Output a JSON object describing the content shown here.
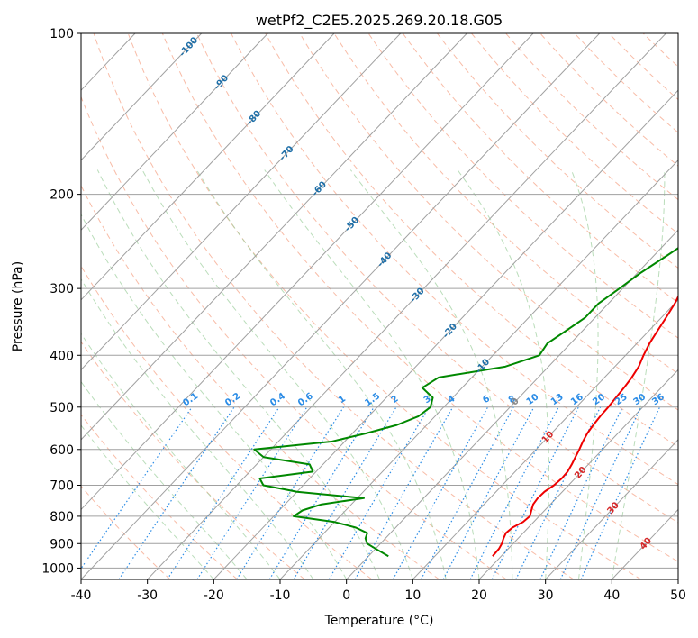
{
  "chart_data": {
    "type": "line",
    "title": "wetPf2_C2E5.2025.269.20.18.G05",
    "xlabel": "Temperature (°C)",
    "ylabel": "Pressure (hPa)",
    "xlim": [
      -40,
      50
    ],
    "ylim": [
      1050,
      100
    ],
    "x_ticks": [
      -40,
      -30,
      -20,
      -10,
      0,
      10,
      20,
      30,
      40,
      50
    ],
    "y_ticks": [
      100,
      200,
      300,
      400,
      500,
      600,
      700,
      800,
      900,
      1000
    ],
    "colors": {
      "temperature": "#ee0000",
      "dewpoint": "#008800",
      "isotherm": "#a0a0a0",
      "dry_adiabat": "#f6a58a",
      "moist_adiabat": "#9ccf9c",
      "mixing_ratio": "#2b8ce6",
      "isotherm_label": "#1f6fa8",
      "dry_label": "#d62728",
      "boundary": "#d8b48c"
    },
    "series": [
      {
        "name": "Temperature",
        "pressure": [
          950,
          920,
          900,
          880,
          860,
          840,
          820,
          800,
          780,
          760,
          740,
          720,
          700,
          680,
          660,
          640,
          620,
          600,
          580,
          560,
          540,
          520,
          500,
          480,
          460,
          440,
          420,
          400,
          380,
          360,
          340,
          320,
          300,
          280,
          260,
          240,
          230,
          220,
          210,
          200,
          190,
          180,
          170,
          160,
          150,
          140,
          130,
          120,
          110,
          100
        ],
        "values": [
          18.7,
          18.6,
          18.3,
          17.8,
          17.4,
          17.6,
          18.4,
          18.6,
          18.0,
          17.4,
          17.2,
          17.3,
          17.8,
          18.0,
          17.9,
          17.5,
          17.0,
          16.5,
          15.9,
          15.4,
          15.1,
          14.9,
          14.8,
          14.6,
          14.4,
          14.1,
          13.6,
          12.7,
          11.9,
          11.3,
          10.7,
          10.0,
          9.0,
          7.6,
          5.8,
          4.0,
          3.0,
          2.2,
          1.5,
          -0.2,
          0.2,
          2.0,
          3.0,
          3.2,
          2.2,
          1.2,
          2.0,
          4.5,
          7.8,
          10.8
        ]
      },
      {
        "name": "Dewpoint",
        "pressure": [
          950,
          920,
          900,
          880,
          860,
          840,
          820,
          800,
          780,
          760,
          740,
          720,
          700,
          680,
          660,
          640,
          620,
          600,
          580,
          560,
          540,
          520,
          500,
          480,
          460,
          440,
          420,
          400,
          380,
          360,
          340,
          320,
          300,
          280,
          260,
          240,
          230,
          220,
          210,
          200,
          190,
          180,
          170,
          160,
          150,
          140,
          130,
          120,
          110,
          100
        ],
        "values": [
          3.0,
          0.0,
          -2.0,
          -3.0,
          -3.5,
          -6.0,
          -10.0,
          -17.0,
          -16.5,
          -14.5,
          -9.0,
          -20.0,
          -26.0,
          -27.5,
          -20.5,
          -22.0,
          -30.0,
          -32.5,
          -22.0,
          -18.0,
          -14.5,
          -12.5,
          -12.0,
          -13.0,
          -16.0,
          -15.0,
          -6.5,
          -3.0,
          -3.5,
          -2.5,
          -1.5,
          -1.5,
          -0.5,
          0.5,
          2.0,
          3.5,
          3.5,
          2.5,
          1.0,
          -1.5,
          -3.0,
          -6.5,
          -9.5,
          -9.5,
          -8.0,
          -6.5,
          -4.0,
          -2.5,
          -0.5,
          2.0
        ]
      }
    ],
    "isotherm_labels": [
      "-100",
      "-90",
      "-80",
      "-70",
      "-60",
      "-50",
      "-40",
      "-30",
      "-20",
      "-10",
      "0",
      "10",
      "20",
      "30",
      "40"
    ],
    "isotherm_label_values": [
      -100,
      -90,
      -80,
      -70,
      -60,
      -50,
      -40,
      -30,
      -20,
      -10,
      0,
      10,
      20,
      30,
      40
    ],
    "mixing_ratio_labels": [
      "0.1",
      "0.2",
      "0.4",
      "0.6",
      "1",
      "1.5",
      "2",
      "3",
      "4",
      "6",
      "8",
      "10",
      "13",
      "16",
      "20",
      "25",
      "30",
      "36"
    ],
    "mixing_ratio_values": [
      0.1,
      0.2,
      0.4,
      0.6,
      1,
      1.5,
      2,
      3,
      4,
      6,
      8,
      10,
      13,
      16,
      20,
      25,
      30,
      36
    ]
  }
}
